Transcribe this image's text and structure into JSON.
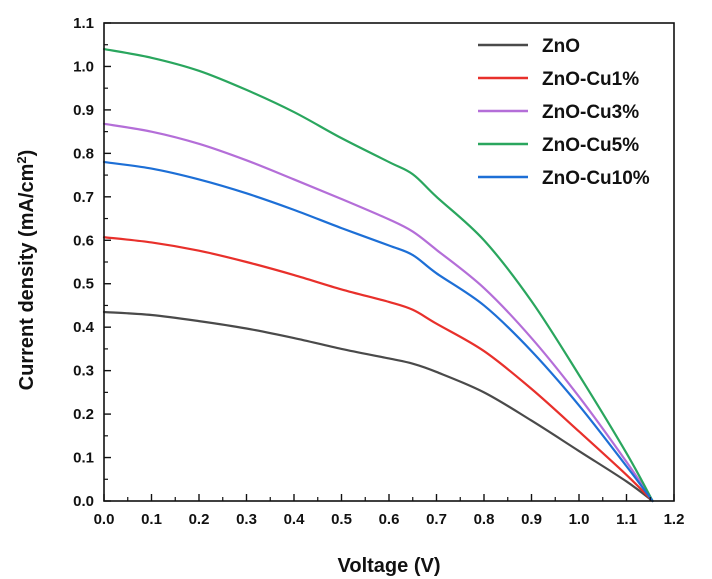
{
  "chart_data": {
    "type": "line",
    "title": "",
    "xlabel": "Voltage (V)",
    "ylabel_main": "Current density (mA/cm",
    "ylabel_sup": "2",
    "ylabel_end": ")",
    "xlim": [
      0.0,
      1.2
    ],
    "ylim": [
      0.0,
      1.1
    ],
    "x_ticks": [
      "0.0",
      "0.1",
      "0.2",
      "0.3",
      "0.4",
      "0.5",
      "0.6",
      "0.7",
      "0.8",
      "0.9",
      "1.0",
      "1.1",
      "1.2"
    ],
    "y_ticks": [
      "0.0",
      "0.1",
      "0.2",
      "0.3",
      "0.4",
      "0.5",
      "0.6",
      "0.7",
      "0.8",
      "0.9",
      "1.0",
      "1.1"
    ],
    "grid": false,
    "legend_position": "top-right",
    "series": [
      {
        "name": "ZnO",
        "color": "#4a4a4a",
        "x": [
          0.0,
          0.1,
          0.2,
          0.3,
          0.4,
          0.5,
          0.6,
          0.65,
          0.7,
          0.8,
          0.9,
          1.0,
          1.1,
          1.155
        ],
        "y": [
          0.435,
          0.428,
          0.414,
          0.397,
          0.375,
          0.35,
          0.328,
          0.316,
          0.297,
          0.25,
          0.185,
          0.115,
          0.045,
          0.0
        ]
      },
      {
        "name": "ZnO-Cu1%",
        "color": "#e8302b",
        "x": [
          0.0,
          0.1,
          0.2,
          0.3,
          0.4,
          0.5,
          0.6,
          0.65,
          0.7,
          0.8,
          0.9,
          1.0,
          1.1,
          1.155
        ],
        "y": [
          0.607,
          0.595,
          0.576,
          0.55,
          0.52,
          0.487,
          0.458,
          0.44,
          0.408,
          0.345,
          0.258,
          0.16,
          0.06,
          0.0
        ]
      },
      {
        "name": "ZnO-Cu3%",
        "color": "#b46ed8",
        "x": [
          0.0,
          0.1,
          0.2,
          0.3,
          0.4,
          0.5,
          0.6,
          0.65,
          0.7,
          0.8,
          0.9,
          1.0,
          1.1,
          1.155
        ],
        "y": [
          0.868,
          0.85,
          0.822,
          0.784,
          0.74,
          0.695,
          0.648,
          0.62,
          0.578,
          0.49,
          0.375,
          0.24,
          0.09,
          0.0
        ]
      },
      {
        "name": "ZnO-Cu5%",
        "color": "#2aa65e",
        "x": [
          0.0,
          0.1,
          0.2,
          0.3,
          0.4,
          0.5,
          0.6,
          0.65,
          0.7,
          0.8,
          0.9,
          1.0,
          1.1,
          1.155
        ],
        "y": [
          1.04,
          1.02,
          0.99,
          0.946,
          0.895,
          0.835,
          0.78,
          0.752,
          0.7,
          0.6,
          0.46,
          0.29,
          0.11,
          0.0
        ]
      },
      {
        "name": "ZnO-Cu10%",
        "color": "#1d6fd6",
        "x": [
          0.0,
          0.1,
          0.2,
          0.3,
          0.4,
          0.5,
          0.6,
          0.65,
          0.7,
          0.8,
          0.9,
          1.0,
          1.1,
          1.155
        ],
        "y": [
          0.78,
          0.765,
          0.74,
          0.708,
          0.67,
          0.628,
          0.588,
          0.566,
          0.524,
          0.45,
          0.345,
          0.22,
          0.08,
          0.0
        ]
      }
    ]
  }
}
